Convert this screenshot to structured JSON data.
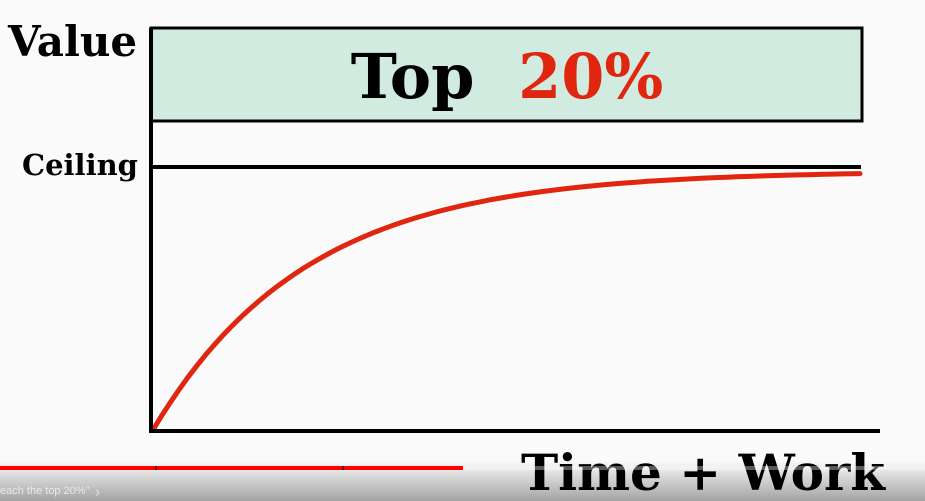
{
  "video": {
    "chapter_title": "each the top 20%\"",
    "progress_fraction": 0.5
  },
  "chart_data": {
    "type": "line",
    "ylabel": "Value",
    "xlabel": "Time + Work",
    "highlight_band": {
      "label_prefix": "Top",
      "label_value": "20%"
    },
    "ceiling_label": "Ceiling",
    "series": [
      {
        "curve": "asymptotic",
        "color": "#e0260f"
      }
    ],
    "colors": {
      "band_fill": "#d2ebe0",
      "axis": "#000000",
      "accent": "#e0260f"
    }
  }
}
